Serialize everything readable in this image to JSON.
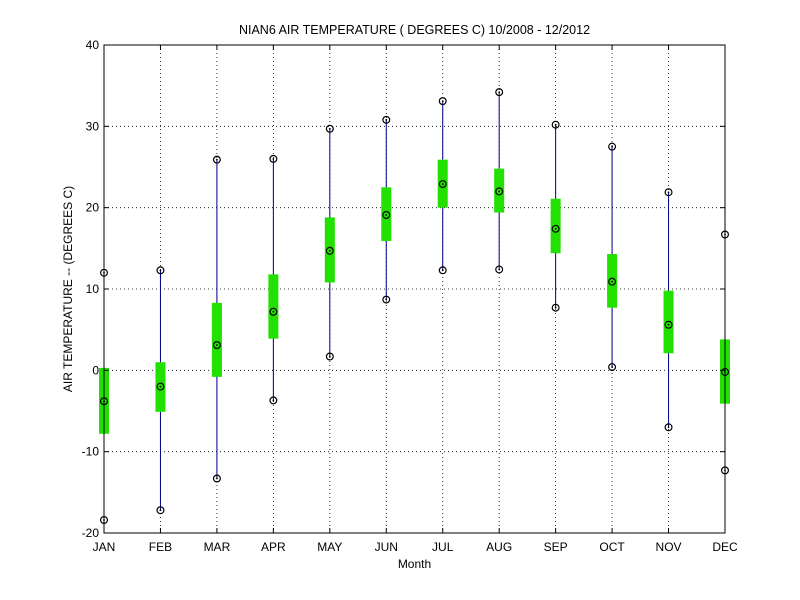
{
  "chart_data": {
    "type": "box",
    "title": "NIAN6  AIR TEMPERATURE ( DEGREES C) 10/2008 - 12/2012",
    "xlabel": "Month",
    "ylabel": "AIR TEMPERATURE -- (DEGREES C)",
    "ylim": [
      -20,
      40
    ],
    "yticks": [
      -20,
      -10,
      0,
      10,
      20,
      30,
      40
    ],
    "grid": true,
    "categories": [
      "JAN",
      "FEB",
      "MAR",
      "APR",
      "MAY",
      "JUN",
      "JUL",
      "AUG",
      "SEP",
      "OCT",
      "NOV",
      "DEC"
    ],
    "series": [
      {
        "min": -18.4,
        "q1": -7.8,
        "mean": -3.8,
        "q3": 0.3,
        "max": 12.0
      },
      {
        "min": -17.2,
        "q1": -5.1,
        "mean": -2.0,
        "q3": 1.0,
        "max": 12.3
      },
      {
        "min": -13.3,
        "q1": -0.8,
        "mean": 3.1,
        "q3": 8.3,
        "max": 25.9
      },
      {
        "min": -3.7,
        "q1": 3.9,
        "mean": 7.2,
        "q3": 11.8,
        "max": 26.0
      },
      {
        "min": 1.7,
        "q1": 10.8,
        "mean": 14.7,
        "q3": 18.8,
        "max": 29.7
      },
      {
        "min": 8.7,
        "q1": 15.9,
        "mean": 19.1,
        "q3": 22.5,
        "max": 30.8
      },
      {
        "min": 12.3,
        "q1": 20.0,
        "mean": 22.9,
        "q3": 25.9,
        "max": 33.1
      },
      {
        "min": 12.4,
        "q1": 19.4,
        "mean": 22.0,
        "q3": 24.8,
        "max": 34.2
      },
      {
        "min": 7.7,
        "q1": 14.4,
        "mean": 17.4,
        "q3": 21.1,
        "max": 30.2
      },
      {
        "min": 0.4,
        "q1": 7.7,
        "mean": 10.9,
        "q3": 14.3,
        "max": 27.5
      },
      {
        "min": -7.0,
        "q1": 2.1,
        "mean": 5.6,
        "q3": 9.8,
        "max": 21.9
      },
      {
        "min": -12.3,
        "q1": -4.1,
        "mean": -0.2,
        "q3": 3.8,
        "max": 16.7
      }
    ],
    "colors": {
      "whisker": "#00008b",
      "box": "#22e000",
      "marker": "#000000",
      "grid": "#000000"
    }
  }
}
